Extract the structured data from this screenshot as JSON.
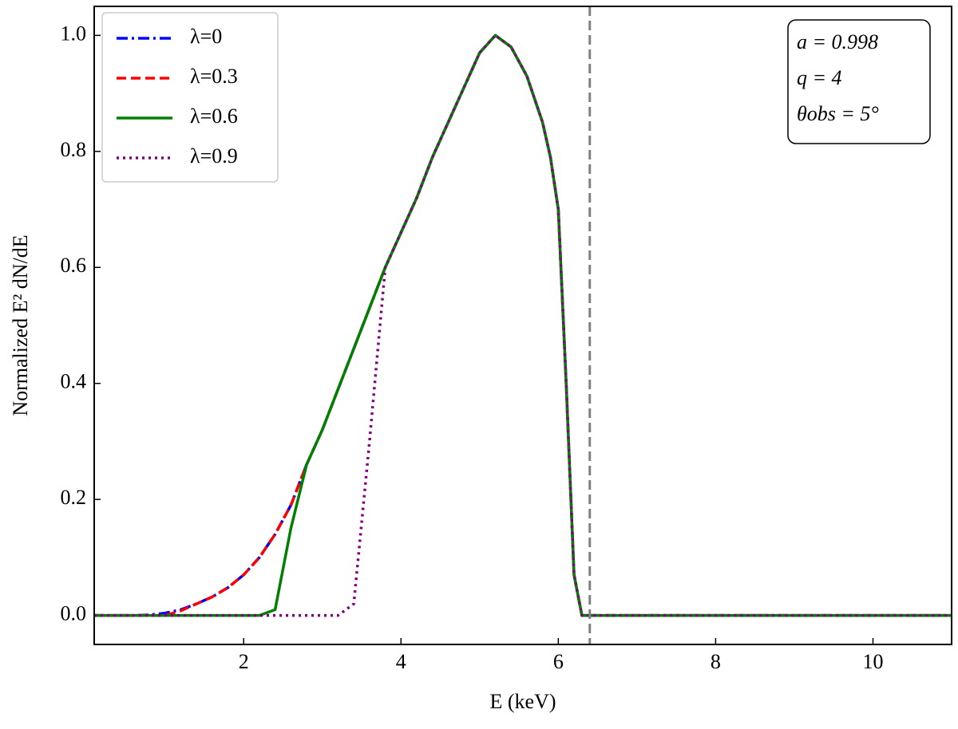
{
  "chart_data": {
    "type": "line",
    "x_label": "E (keV)",
    "y_label": "Normalized E² dN/dE",
    "x": [
      0.1,
      0.6,
      0.8,
      1.0,
      1.2,
      1.4,
      1.6,
      1.8,
      2.0,
      2.2,
      2.4,
      2.6,
      2.8,
      3.0,
      3.2,
      3.4,
      3.6,
      3.8,
      4.0,
      4.2,
      4.4,
      4.6,
      4.8,
      5.0,
      5.2,
      5.4,
      5.6,
      5.8,
      5.9,
      6.0,
      6.1,
      6.2,
      6.3,
      6.4,
      8,
      11
    ],
    "series": [
      {
        "name": "λ=0",
        "color": "#0000ff",
        "dash": "14 5 3 5",
        "values": [
          0,
          0,
          0.001,
          0.004,
          0.01,
          0.02,
          0.032,
          0.048,
          0.07,
          0.1,
          0.14,
          0.19,
          0.26,
          0.32,
          0.39,
          0.46,
          0.53,
          0.6,
          0.66,
          0.72,
          0.79,
          0.85,
          0.91,
          0.97,
          1.0,
          0.98,
          0.93,
          0.85,
          0.79,
          0.7,
          0.4,
          0.07,
          0,
          0,
          0,
          0
        ]
      },
      {
        "name": "λ=0.3",
        "color": "#ff0000",
        "dash": "12 6",
        "values": [
          0,
          0,
          0,
          0,
          0.008,
          0.02,
          0.032,
          0.048,
          0.07,
          0.1,
          0.14,
          0.19,
          0.26,
          0.32,
          0.39,
          0.46,
          0.53,
          0.6,
          0.66,
          0.72,
          0.79,
          0.85,
          0.91,
          0.97,
          1.0,
          0.98,
          0.93,
          0.85,
          0.79,
          0.7,
          0.4,
          0.07,
          0,
          0,
          0,
          0
        ]
      },
      {
        "name": "λ=0.6",
        "color": "#008000",
        "dash": "none",
        "values": [
          0,
          0,
          0,
          0,
          0,
          0,
          0,
          0,
          0,
          0,
          0.01,
          0.15,
          0.26,
          0.32,
          0.39,
          0.46,
          0.53,
          0.6,
          0.66,
          0.72,
          0.79,
          0.85,
          0.91,
          0.97,
          1.0,
          0.98,
          0.93,
          0.85,
          0.79,
          0.7,
          0.4,
          0.07,
          0,
          0,
          0,
          0
        ]
      },
      {
        "name": "λ=0.9",
        "color": "#800080",
        "dash": "3 5",
        "values": [
          0,
          0,
          0,
          0,
          0,
          0,
          0,
          0,
          0,
          0,
          0,
          0,
          0,
          0,
          0,
          0.02,
          0.3,
          0.6,
          0.66,
          0.72,
          0.79,
          0.85,
          0.91,
          0.97,
          1.0,
          0.98,
          0.93,
          0.85,
          0.79,
          0.7,
          0.4,
          0.07,
          0,
          0,
          0,
          0
        ]
      }
    ],
    "xlim": [
      0.1,
      11
    ],
    "ylim": [
      -0.05,
      1.05
    ],
    "xticks": [
      2,
      4,
      6,
      8,
      10
    ],
    "yticks": [
      {
        "value": 0,
        "label": "0.0"
      },
      {
        "value": 0.2,
        "label": "0.2"
      },
      {
        "value": 0.4,
        "label": "0.4"
      },
      {
        "value": 0.6,
        "label": "0.6"
      },
      {
        "value": 0.8,
        "label": "0.8"
      },
      {
        "value": 1.0,
        "label": "1.0"
      }
    ],
    "reference_line_x": 6.4,
    "reference_line_color": "#808080",
    "legend": "upper left",
    "annotations": [
      "a = 0.998",
      "q = 4",
      "θobs = 5°"
    ]
  }
}
